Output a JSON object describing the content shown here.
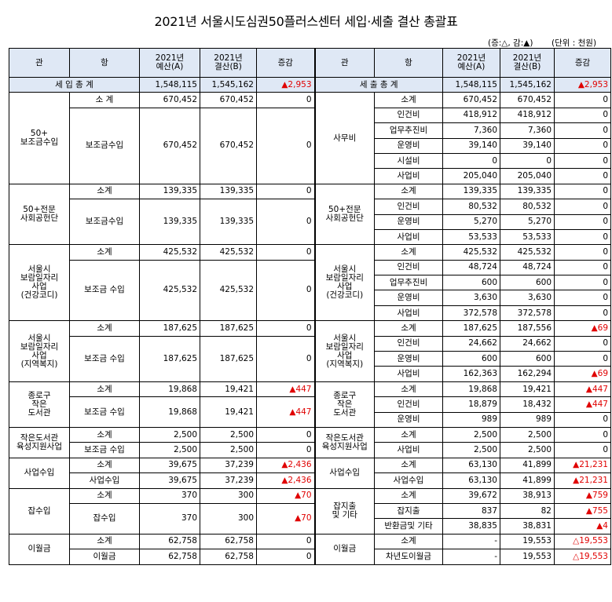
{
  "title": "2021년 서울시도심권50플러스센터 세입·세출 결산 총괄표",
  "legend": "(증:△, 감:▲)",
  "unit": "(단위 : 천원)",
  "headers": {
    "gwan": "관",
    "hang": "항",
    "budget_l1": "2021년",
    "budget_l2": "예산(A)",
    "settle_l1": "2021년",
    "settle_l2": "결산(B)",
    "diff": "증감"
  },
  "totals": {
    "revenue_label": "세 입 총 계",
    "revenue_budget": "1,548,115",
    "revenue_settle": "1,545,162",
    "revenue_diff": "▲2,953",
    "expense_label": "세 출 총 계",
    "expense_budget": "1,548,115",
    "expense_settle": "1,545,162",
    "expense_diff": "▲2,953"
  },
  "revenue": [
    {
      "gwan": "50+\n보조금수입",
      "rows": [
        {
          "hang": "소 계",
          "a": "670,452",
          "b": "670,452",
          "d": "0",
          "sub": true
        },
        {
          "hang": "보조금수입",
          "a": "670,452",
          "b": "670,452",
          "d": "0"
        }
      ]
    },
    {
      "gwan": "50+전문\n사회공헌단",
      "rows": [
        {
          "hang": "소계",
          "a": "139,335",
          "b": "139,335",
          "d": "0",
          "sub": true
        },
        {
          "hang": "보조금수입",
          "a": "139,335",
          "b": "139,335",
          "d": "0"
        }
      ]
    },
    {
      "gwan": "서울시\n보람일자리\n사업\n(건강코디)",
      "rows": [
        {
          "hang": "소계",
          "a": "425,532",
          "b": "425,532",
          "d": "0",
          "sub": true
        },
        {
          "hang": "보조금 수입",
          "a": "425,532",
          "b": "425,532",
          "d": "0"
        }
      ]
    },
    {
      "gwan": "서울시\n보람일자리\n사업\n(지역복지)",
      "rows": [
        {
          "hang": "소계",
          "a": "187,625",
          "b": "187,625",
          "d": "0",
          "sub": true
        },
        {
          "hang": "보조금 수입",
          "a": "187,625",
          "b": "187,625",
          "d": "0"
        }
      ]
    },
    {
      "gwan": "종로구\n작은\n도서관",
      "rows": [
        {
          "hang": "소계",
          "a": "19,868",
          "b": "19,421",
          "d": "▲447",
          "sub": true
        },
        {
          "hang": "보조금 수입",
          "a": "19,868",
          "b": "19,421",
          "d": "▲447"
        }
      ]
    },
    {
      "gwan": "작은도서관\n육성지원사업",
      "rows": [
        {
          "hang": "소계",
          "a": "2,500",
          "b": "2,500",
          "d": "0",
          "sub": true
        },
        {
          "hang": "보조금 수입",
          "a": "2,500",
          "b": "2,500",
          "d": "0"
        }
      ]
    },
    {
      "gwan": "사업수입",
      "rows": [
        {
          "hang": "소계",
          "a": "39,675",
          "b": "37,239",
          "d": "▲2,436",
          "sub": true
        },
        {
          "hang": "사업수입",
          "a": "39,675",
          "b": "37,239",
          "d": "▲2,436"
        }
      ]
    },
    {
      "gwan": "잡수입",
      "rows": [
        {
          "hang": "소계",
          "a": "370",
          "b": "300",
          "d": "▲70",
          "sub": true
        },
        {
          "hang": "잡수입",
          "a": "370",
          "b": "300",
          "d": "▲70"
        }
      ]
    },
    {
      "gwan": "이월금",
      "rows": [
        {
          "hang": "소계",
          "a": "62,758",
          "b": "62,758",
          "d": "0",
          "sub": true
        },
        {
          "hang": "이월금",
          "a": "62,758",
          "b": "62,758",
          "d": "0"
        }
      ]
    }
  ],
  "expense": [
    {
      "gwan": "사무비",
      "rows": [
        {
          "hang": "소계",
          "a": "670,452",
          "b": "670,452",
          "d": "0"
        },
        {
          "hang": "인건비",
          "a": "418,912",
          "b": "418,912",
          "d": "0"
        },
        {
          "hang": "업무추진비",
          "a": "7,360",
          "b": "7,360",
          "d": "0"
        },
        {
          "hang": "운영비",
          "a": "39,140",
          "b": "39,140",
          "d": "0"
        },
        {
          "hang": "시설비",
          "a": "0",
          "b": "0",
          "d": "0"
        },
        {
          "hang": "사업비",
          "a": "205,040",
          "b": "205,040",
          "d": "0"
        }
      ]
    },
    {
      "gwan": "50+전문\n사회공헌단",
      "rows": [
        {
          "hang": "소계",
          "a": "139,335",
          "b": "139,335",
          "d": "0"
        },
        {
          "hang": "인건비",
          "a": "80,532",
          "b": "80,532",
          "d": "0"
        },
        {
          "hang": "운영비",
          "a": "5,270",
          "b": "5,270",
          "d": "0"
        },
        {
          "hang": "사업비",
          "a": "53,533",
          "b": "53,533",
          "d": "0"
        }
      ]
    },
    {
      "gwan": "서울시\n보람일자리\n사업\n(건강코디)",
      "rows": [
        {
          "hang": "소계",
          "a": "425,532",
          "b": "425,532",
          "d": "0"
        },
        {
          "hang": "인건비",
          "a": "48,724",
          "b": "48,724",
          "d": "0"
        },
        {
          "hang": "업무추진비",
          "a": "600",
          "b": "600",
          "d": "0"
        },
        {
          "hang": "운영비",
          "a": "3,630",
          "b": "3,630",
          "d": "0"
        },
        {
          "hang": "사업비",
          "a": "372,578",
          "b": "372,578",
          "d": "0"
        }
      ]
    },
    {
      "gwan": "서울시\n보람일자리\n사업\n(지역복지)",
      "rows": [
        {
          "hang": "소계",
          "a": "187,625",
          "b": "187,556",
          "d": "▲69"
        },
        {
          "hang": "인건비",
          "a": "24,662",
          "b": "24,662",
          "d": "0"
        },
        {
          "hang": "운영비",
          "a": "600",
          "b": "600",
          "d": "0"
        },
        {
          "hang": "사업비",
          "a": "162,363",
          "b": "162,294",
          "d": "▲69"
        }
      ]
    },
    {
      "gwan": "종로구\n작은\n도서관",
      "rows": [
        {
          "hang": "소계",
          "a": "19,868",
          "b": "19,421",
          "d": "▲447"
        },
        {
          "hang": "인건비",
          "a": "18,879",
          "b": "18,432",
          "d": "▲447"
        },
        {
          "hang": "운영비",
          "a": "989",
          "b": "989",
          "d": "0"
        }
      ]
    },
    {
      "gwan": "작은도서관\n육성지원사업",
      "rows": [
        {
          "hang": "소계",
          "a": "2,500",
          "b": "2,500",
          "d": "0"
        },
        {
          "hang": "사업비",
          "a": "2,500",
          "b": "2,500",
          "d": "0"
        }
      ]
    },
    {
      "gwan": "사업수입",
      "rows": [
        {
          "hang": "소계",
          "a": "63,130",
          "b": "41,899",
          "d": "▲21,231"
        },
        {
          "hang": "사업수입",
          "a": "63,130",
          "b": "41,899",
          "d": "▲21,231"
        }
      ]
    },
    {
      "gwan": "잡지출\n및 기타",
      "rows": [
        {
          "hang": "소계",
          "a": "39,672",
          "b": "38,913",
          "d": "▲759"
        },
        {
          "hang": "잡지출",
          "a": "837",
          "b": "82",
          "d": "▲755"
        },
        {
          "hang": "반환금및 기타",
          "a": "38,835",
          "b": "38,831",
          "d": "▲4"
        }
      ]
    },
    {
      "gwan": "이월금",
      "rows": [
        {
          "hang": "소계",
          "a": "-",
          "b": "19,553",
          "d": "△19,553"
        },
        {
          "hang": "차년도이월금",
          "a": "-",
          "b": "19,553",
          "d": "△19,553"
        }
      ]
    }
  ]
}
